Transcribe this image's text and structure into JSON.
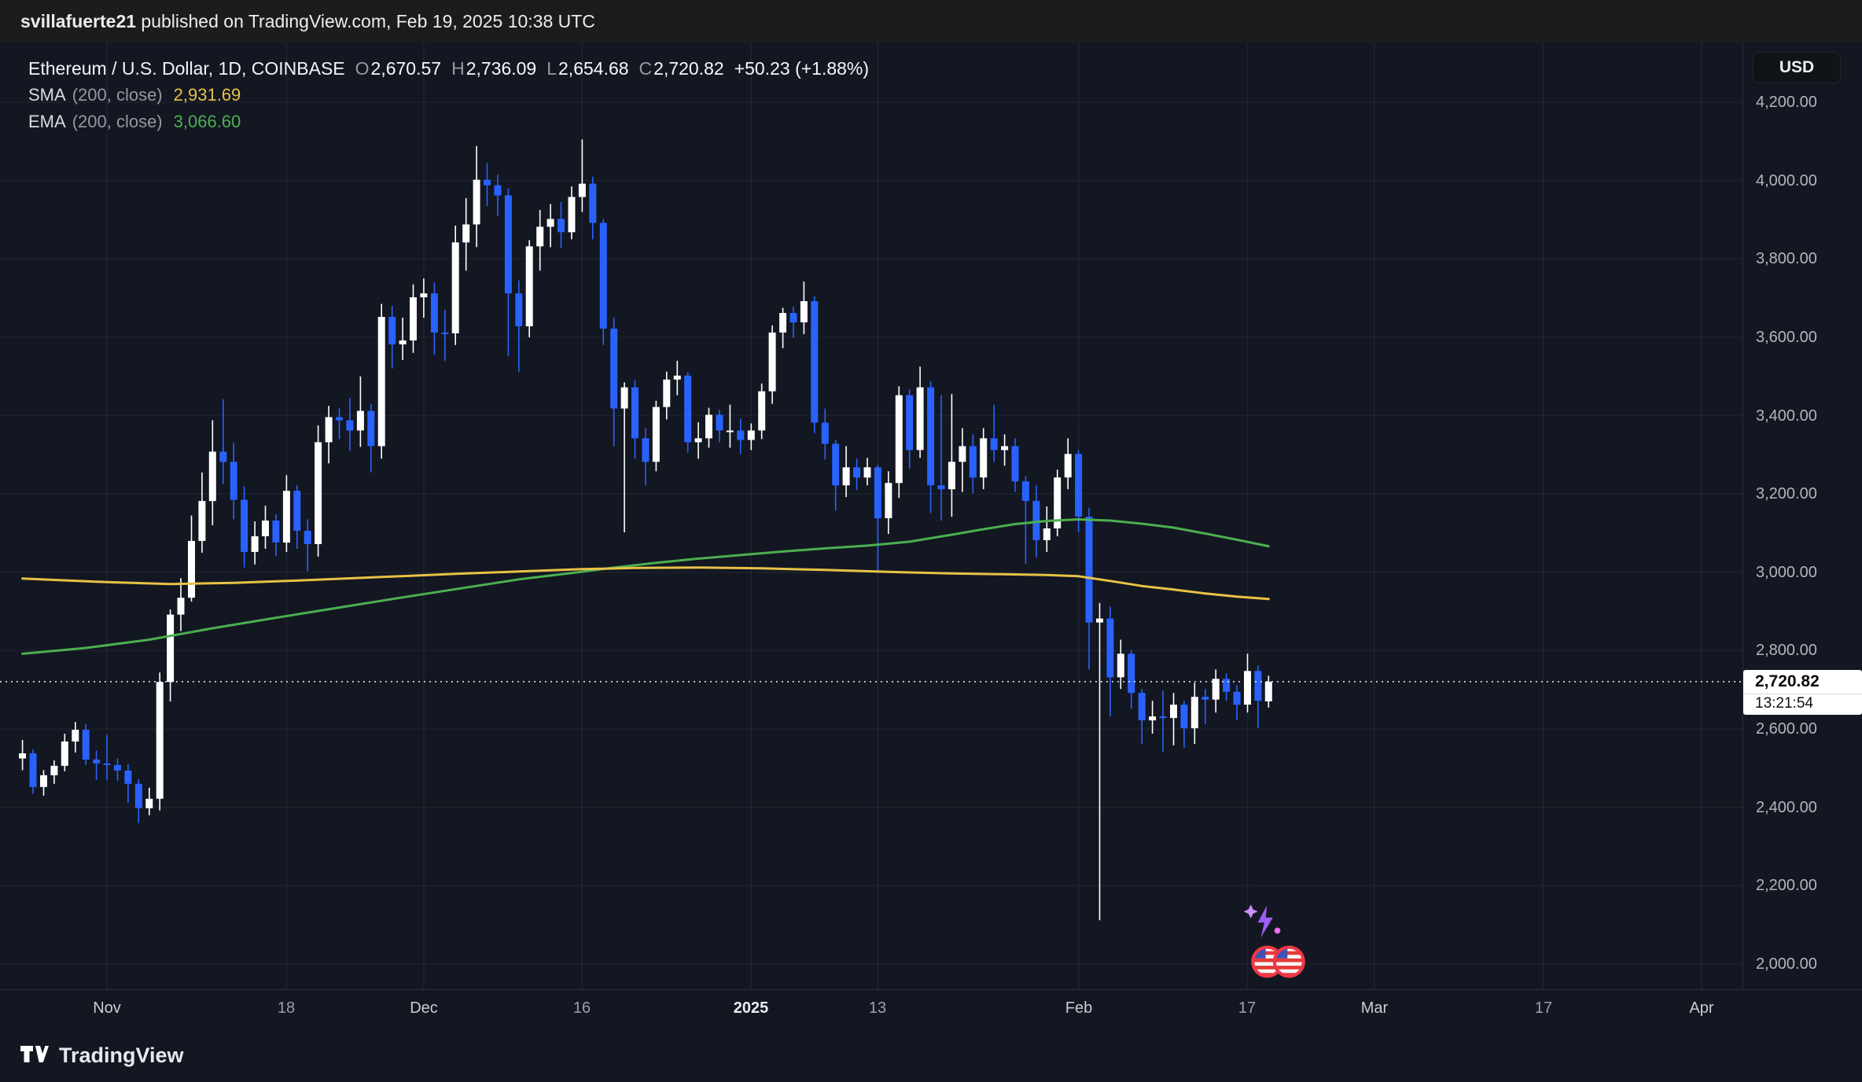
{
  "header": {
    "username": "svillafuerte21",
    "rest": " published on TradingView.com, Feb 19, 2025 10:38 UTC"
  },
  "legend": {
    "symbol_title": "Ethereum / U.S. Dollar, 1D, COINBASE",
    "ohlc": [
      {
        "k": "O",
        "v": "2,670.57"
      },
      {
        "k": "H",
        "v": "2,736.09"
      },
      {
        "k": "L",
        "v": "2,654.68"
      },
      {
        "k": "C",
        "v": "2,720.82"
      }
    ],
    "change": "+50.23 (+1.88%)",
    "sma": {
      "name": "SMA",
      "params": "(200, close)",
      "value": "2,931.69"
    },
    "ema": {
      "name": "EMA",
      "params": "(200, close)",
      "value": "3,066.60"
    }
  },
  "price_axis": {
    "currency_button": "USD",
    "last_price_label": "2,720.82",
    "countdown": "13:21:54"
  },
  "footer": {
    "brand": "TradingView"
  },
  "colors": {
    "background": "#131722",
    "up": "#FFFFFF",
    "down": "#2962FF",
    "sma": "#E8C247",
    "ema": "#4CAF50",
    "axis_text": "#B2B5BE",
    "last_price_line": "#FFFFFF"
  },
  "chart_data": {
    "type": "candlestick",
    "title": "Ethereum / U.S. Dollar, 1D, COINBASE",
    "interval": "1D",
    "exchange": "COINBASE",
    "start_date": "2024-10-24",
    "ylim": [
      1950,
      4300
    ],
    "grid": true,
    "last_price": 2720.82,
    "up_color": "#FFFFFF",
    "down_color": "#2962FF",
    "sma_color": "#E8C247",
    "ema_color": "#4CAF50",
    "price_ticks": [
      {
        "value": 4200,
        "label": "4,200.00"
      },
      {
        "value": 4000,
        "label": "4,000.00"
      },
      {
        "value": 3800,
        "label": "3,800.00"
      },
      {
        "value": 3600,
        "label": "3,600.00"
      },
      {
        "value": 3400,
        "label": "3,400.00"
      },
      {
        "value": 3200,
        "label": "3,200.00"
      },
      {
        "value": 3000,
        "label": "3,000.00"
      },
      {
        "value": 2800,
        "label": "2,800.00"
      },
      {
        "value": 2600,
        "label": "2,600.00"
      },
      {
        "value": 2400,
        "label": "2,400.00"
      },
      {
        "value": 2200,
        "label": "2,200.00"
      },
      {
        "value": 2000,
        "label": "2,000.00"
      }
    ],
    "time_ticks": [
      {
        "label": "Nov",
        "day_offset": 8,
        "kind": "month"
      },
      {
        "label": "18",
        "day_offset": 25,
        "kind": "day"
      },
      {
        "label": "Dec",
        "day_offset": 38,
        "kind": "month"
      },
      {
        "label": "16",
        "day_offset": 53,
        "kind": "day"
      },
      {
        "label": "2025",
        "day_offset": 69,
        "kind": "year"
      },
      {
        "label": "13",
        "day_offset": 81,
        "kind": "day"
      },
      {
        "label": "Feb",
        "day_offset": 100,
        "kind": "month"
      },
      {
        "label": "17",
        "day_offset": 116,
        "kind": "day"
      },
      {
        "label": "Mar",
        "day_offset": 128,
        "kind": "month"
      },
      {
        "label": "17",
        "day_offset": 144,
        "kind": "day"
      },
      {
        "label": "Apr",
        "day_offset": 159,
        "kind": "month"
      }
    ],
    "candles": [
      [
        2525,
        2572,
        2495,
        2538
      ],
      [
        2538,
        2548,
        2435,
        2452
      ],
      [
        2452,
        2495,
        2430,
        2482
      ],
      [
        2482,
        2520,
        2460,
        2506
      ],
      [
        2506,
        2588,
        2492,
        2568
      ],
      [
        2568,
        2618,
        2540,
        2598
      ],
      [
        2598,
        2612,
        2508,
        2522
      ],
      [
        2522,
        2545,
        2470,
        2512
      ],
      [
        2512,
        2585,
        2470,
        2508
      ],
      [
        2508,
        2525,
        2468,
        2494
      ],
      [
        2494,
        2510,
        2412,
        2460
      ],
      [
        2460,
        2472,
        2360,
        2398
      ],
      [
        2398,
        2450,
        2380,
        2422
      ],
      [
        2422,
        2744,
        2392,
        2720
      ],
      [
        2720,
        2905,
        2670,
        2892
      ],
      [
        2892,
        2985,
        2850,
        2935
      ],
      [
        2935,
        3145,
        2925,
        3080
      ],
      [
        3080,
        3255,
        3050,
        3182
      ],
      [
        3182,
        3388,
        3120,
        3308
      ],
      [
        3308,
        3442,
        3225,
        3282
      ],
      [
        3282,
        3330,
        3135,
        3185
      ],
      [
        3185,
        3220,
        3012,
        3052
      ],
      [
        3052,
        3130,
        3020,
        3092
      ],
      [
        3092,
        3170,
        3060,
        3132
      ],
      [
        3132,
        3148,
        3042,
        3076
      ],
      [
        3076,
        3248,
        3052,
        3208
      ],
      [
        3208,
        3222,
        3060,
        3106
      ],
      [
        3106,
        3135,
        3002,
        3072
      ],
      [
        3072,
        3375,
        3040,
        3332
      ],
      [
        3332,
        3425,
        3278,
        3396
      ],
      [
        3396,
        3420,
        3340,
        3388
      ],
      [
        3388,
        3445,
        3310,
        3362
      ],
      [
        3362,
        3500,
        3320,
        3412
      ],
      [
        3412,
        3430,
        3255,
        3322
      ],
      [
        3322,
        3685,
        3290,
        3652
      ],
      [
        3652,
        3680,
        3520,
        3582
      ],
      [
        3582,
        3650,
        3542,
        3592
      ],
      [
        3592,
        3735,
        3560,
        3702
      ],
      [
        3702,
        3750,
        3650,
        3712
      ],
      [
        3712,
        3740,
        3555,
        3612
      ],
      [
        3612,
        3670,
        3540,
        3610
      ],
      [
        3610,
        3885,
        3580,
        3842
      ],
      [
        3842,
        3955,
        3770,
        3888
      ],
      [
        3888,
        4088,
        3830,
        4002
      ],
      [
        4002,
        4045,
        3935,
        3988
      ],
      [
        3988,
        4015,
        3910,
        3962
      ],
      [
        3962,
        3980,
        3552,
        3712
      ],
      [
        3712,
        3745,
        3512,
        3628
      ],
      [
        3628,
        3848,
        3600,
        3832
      ],
      [
        3832,
        3925,
        3770,
        3882
      ],
      [
        3882,
        3940,
        3830,
        3902
      ],
      [
        3902,
        3945,
        3828,
        3868
      ],
      [
        3868,
        3985,
        3850,
        3958
      ],
      [
        3958,
        4105,
        3920,
        3992
      ],
      [
        3992,
        4010,
        3850,
        3892
      ],
      [
        3892,
        3902,
        3580,
        3622
      ],
      [
        3622,
        3650,
        3322,
        3418
      ],
      [
        3418,
        3485,
        3102,
        3472
      ],
      [
        3472,
        3490,
        3290,
        3342
      ],
      [
        3342,
        3368,
        3222,
        3282
      ],
      [
        3282,
        3438,
        3258,
        3422
      ],
      [
        3422,
        3512,
        3390,
        3492
      ],
      [
        3492,
        3540,
        3452,
        3502
      ],
      [
        3502,
        3510,
        3305,
        3332
      ],
      [
        3332,
        3383,
        3290,
        3342
      ],
      [
        3342,
        3420,
        3318,
        3402
      ],
      [
        3402,
        3415,
        3332,
        3362
      ],
      [
        3362,
        3428,
        3318,
        3362
      ],
      [
        3362,
        3392,
        3302,
        3338
      ],
      [
        3338,
        3380,
        3312,
        3362
      ],
      [
        3362,
        3482,
        3340,
        3462
      ],
      [
        3462,
        3630,
        3430,
        3612
      ],
      [
        3612,
        3675,
        3572,
        3662
      ],
      [
        3662,
        3678,
        3598,
        3638
      ],
      [
        3638,
        3742,
        3608,
        3692
      ],
      [
        3692,
        3705,
        3355,
        3382
      ],
      [
        3382,
        3418,
        3288,
        3328
      ],
      [
        3328,
        3338,
        3158,
        3222
      ],
      [
        3222,
        3322,
        3192,
        3268
      ],
      [
        3268,
        3290,
        3210,
        3242
      ],
      [
        3242,
        3292,
        3222,
        3268
      ],
      [
        3268,
        3275,
        3002,
        3138
      ],
      [
        3138,
        3258,
        3098,
        3228
      ],
      [
        3228,
        3475,
        3190,
        3452
      ],
      [
        3452,
        3468,
        3265,
        3312
      ],
      [
        3312,
        3525,
        3292,
        3472
      ],
      [
        3472,
        3488,
        3152,
        3222
      ],
      [
        3222,
        3452,
        3132,
        3212
      ],
      [
        3212,
        3455,
        3142,
        3282
      ],
      [
        3282,
        3368,
        3205,
        3322
      ],
      [
        3322,
        3352,
        3202,
        3242
      ],
      [
        3242,
        3368,
        3212,
        3342
      ],
      [
        3342,
        3428,
        3282,
        3312
      ],
      [
        3312,
        3352,
        3272,
        3322
      ],
      [
        3322,
        3342,
        3205,
        3232
      ],
      [
        3232,
        3245,
        3022,
        3182
      ],
      [
        3182,
        3222,
        3038,
        3082
      ],
      [
        3082,
        3168,
        3052,
        3112
      ],
      [
        3112,
        3262,
        3092,
        3242
      ],
      [
        3242,
        3342,
        3212,
        3302
      ],
      [
        3302,
        3312,
        3102,
        3142
      ],
      [
        3142,
        3165,
        2752,
        2872
      ],
      [
        2872,
        2922,
        2112,
        2882
      ],
      [
        2882,
        2912,
        2632,
        2732
      ],
      [
        2732,
        2828,
        2702,
        2792
      ],
      [
        2792,
        2802,
        2652,
        2692
      ],
      [
        2692,
        2702,
        2562,
        2622
      ],
      [
        2622,
        2672,
        2588,
        2632
      ],
      [
        2632,
        2698,
        2542,
        2628
      ],
      [
        2628,
        2692,
        2558,
        2662
      ],
      [
        2662,
        2672,
        2552,
        2602
      ],
      [
        2602,
        2718,
        2562,
        2682
      ],
      [
        2682,
        2702,
        2612,
        2675
      ],
      [
        2675,
        2752,
        2642,
        2728
      ],
      [
        2728,
        2742,
        2672,
        2695
      ],
      [
        2695,
        2712,
        2622,
        2662
      ],
      [
        2662,
        2792,
        2642,
        2748
      ],
      [
        2748,
        2762,
        2602,
        2672
      ],
      [
        2670.57,
        2736.09,
        2654.68,
        2720.82
      ]
    ],
    "sma200": [
      [
        0,
        2984
      ],
      [
        8,
        2975
      ],
      [
        14,
        2970
      ],
      [
        20,
        2973
      ],
      [
        27,
        2980
      ],
      [
        34,
        2988
      ],
      [
        41,
        2996
      ],
      [
        48,
        3003
      ],
      [
        53,
        3008
      ],
      [
        58,
        3011
      ],
      [
        64,
        3012
      ],
      [
        70,
        3010
      ],
      [
        76,
        3006
      ],
      [
        82,
        3001
      ],
      [
        88,
        2997
      ],
      [
        93,
        2995
      ],
      [
        97,
        2993
      ],
      [
        100,
        2990
      ],
      [
        103,
        2978
      ],
      [
        106,
        2965
      ],
      [
        109,
        2956
      ],
      [
        112,
        2946
      ],
      [
        115,
        2938
      ],
      [
        118,
        2931.69
      ]
    ],
    "ema200": [
      [
        0,
        2792
      ],
      [
        6,
        2807
      ],
      [
        12,
        2828
      ],
      [
        18,
        2857
      ],
      [
        24,
        2884
      ],
      [
        30,
        2910
      ],
      [
        36,
        2936
      ],
      [
        42,
        2961
      ],
      [
        47,
        2982
      ],
      [
        52,
        2998
      ],
      [
        56,
        3012
      ],
      [
        60,
        3024
      ],
      [
        64,
        3035
      ],
      [
        68,
        3044
      ],
      [
        72,
        3053
      ],
      [
        76,
        3061
      ],
      [
        80,
        3068
      ],
      [
        84,
        3078
      ],
      [
        88,
        3096
      ],
      [
        91,
        3110
      ],
      [
        94,
        3123
      ],
      [
        97,
        3131
      ],
      [
        100,
        3135
      ],
      [
        103,
        3132
      ],
      [
        106,
        3124
      ],
      [
        109,
        3114
      ],
      [
        112,
        3099
      ],
      [
        115,
        3083
      ],
      [
        118,
        3066.6
      ]
    ]
  }
}
